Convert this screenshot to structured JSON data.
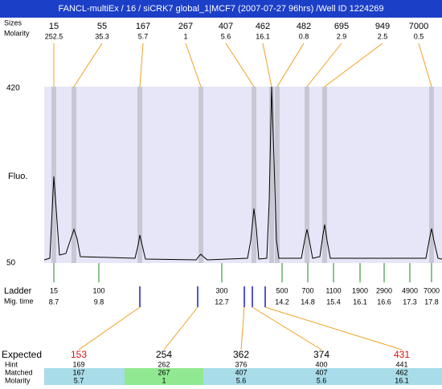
{
  "header": {
    "title": "FANCL-multiEx / 16 / siCRK7 global_1|MCF7 (2007-07-27 96hrs) /Well ID 1224269"
  },
  "top": {
    "size_label": "Sizes",
    "molarity_label": "Molarity",
    "peaks": [
      {
        "size": "15",
        "molarity": "252.5"
      },
      {
        "size": "55",
        "molarity": "35.3"
      },
      {
        "size": "167",
        "molarity": "5.7"
      },
      {
        "size": "267",
        "molarity": "1"
      },
      {
        "size": "407",
        "molarity": "5.6"
      },
      {
        "size": "462",
        "molarity": "16.1"
      },
      {
        "size": "482",
        "molarity": "0.8"
      },
      {
        "size": "695",
        "molarity": "2.9"
      },
      {
        "size": "949",
        "molarity": "2.5"
      },
      {
        "size": "7000",
        "molarity": "0.5"
      }
    ]
  },
  "plot": {
    "y_max": "420",
    "y_label": "Fluo.",
    "y_min": "50"
  },
  "ladder": {
    "label": "Ladder",
    "time_label": "Mig. time",
    "items": [
      {
        "size": "15",
        "time": "8.7"
      },
      {
        "size": "100",
        "time": "9.8"
      },
      {
        "size": "300",
        "time": "12.7"
      },
      {
        "size": "500",
        "time": "14.2"
      },
      {
        "size": "700",
        "time": "14.8"
      },
      {
        "size": "1100",
        "time": "15.4"
      },
      {
        "size": "1900",
        "time": "16.1"
      },
      {
        "size": "2900",
        "time": "16.6"
      },
      {
        "size": "4900",
        "time": "17.3"
      },
      {
        "size": "7000",
        "time": "17.8"
      }
    ]
  },
  "bottom": {
    "labels": [
      "Expected",
      "Hint",
      "Matched",
      "Molarity"
    ],
    "columns": [
      {
        "expected": "153",
        "hint": "169",
        "matched": "167",
        "molarity": "5.7"
      },
      {
        "expected": "254",
        "hint": "262",
        "matched": "267",
        "molarity": "1"
      },
      {
        "expected": "362",
        "hint": "376",
        "matched": "407",
        "molarity": "5.6"
      },
      {
        "expected": "374",
        "hint": "400",
        "matched": "407",
        "molarity": "5.6"
      },
      {
        "expected": "431",
        "hint": "441",
        "matched": "462",
        "molarity": "16.1"
      }
    ]
  }
}
